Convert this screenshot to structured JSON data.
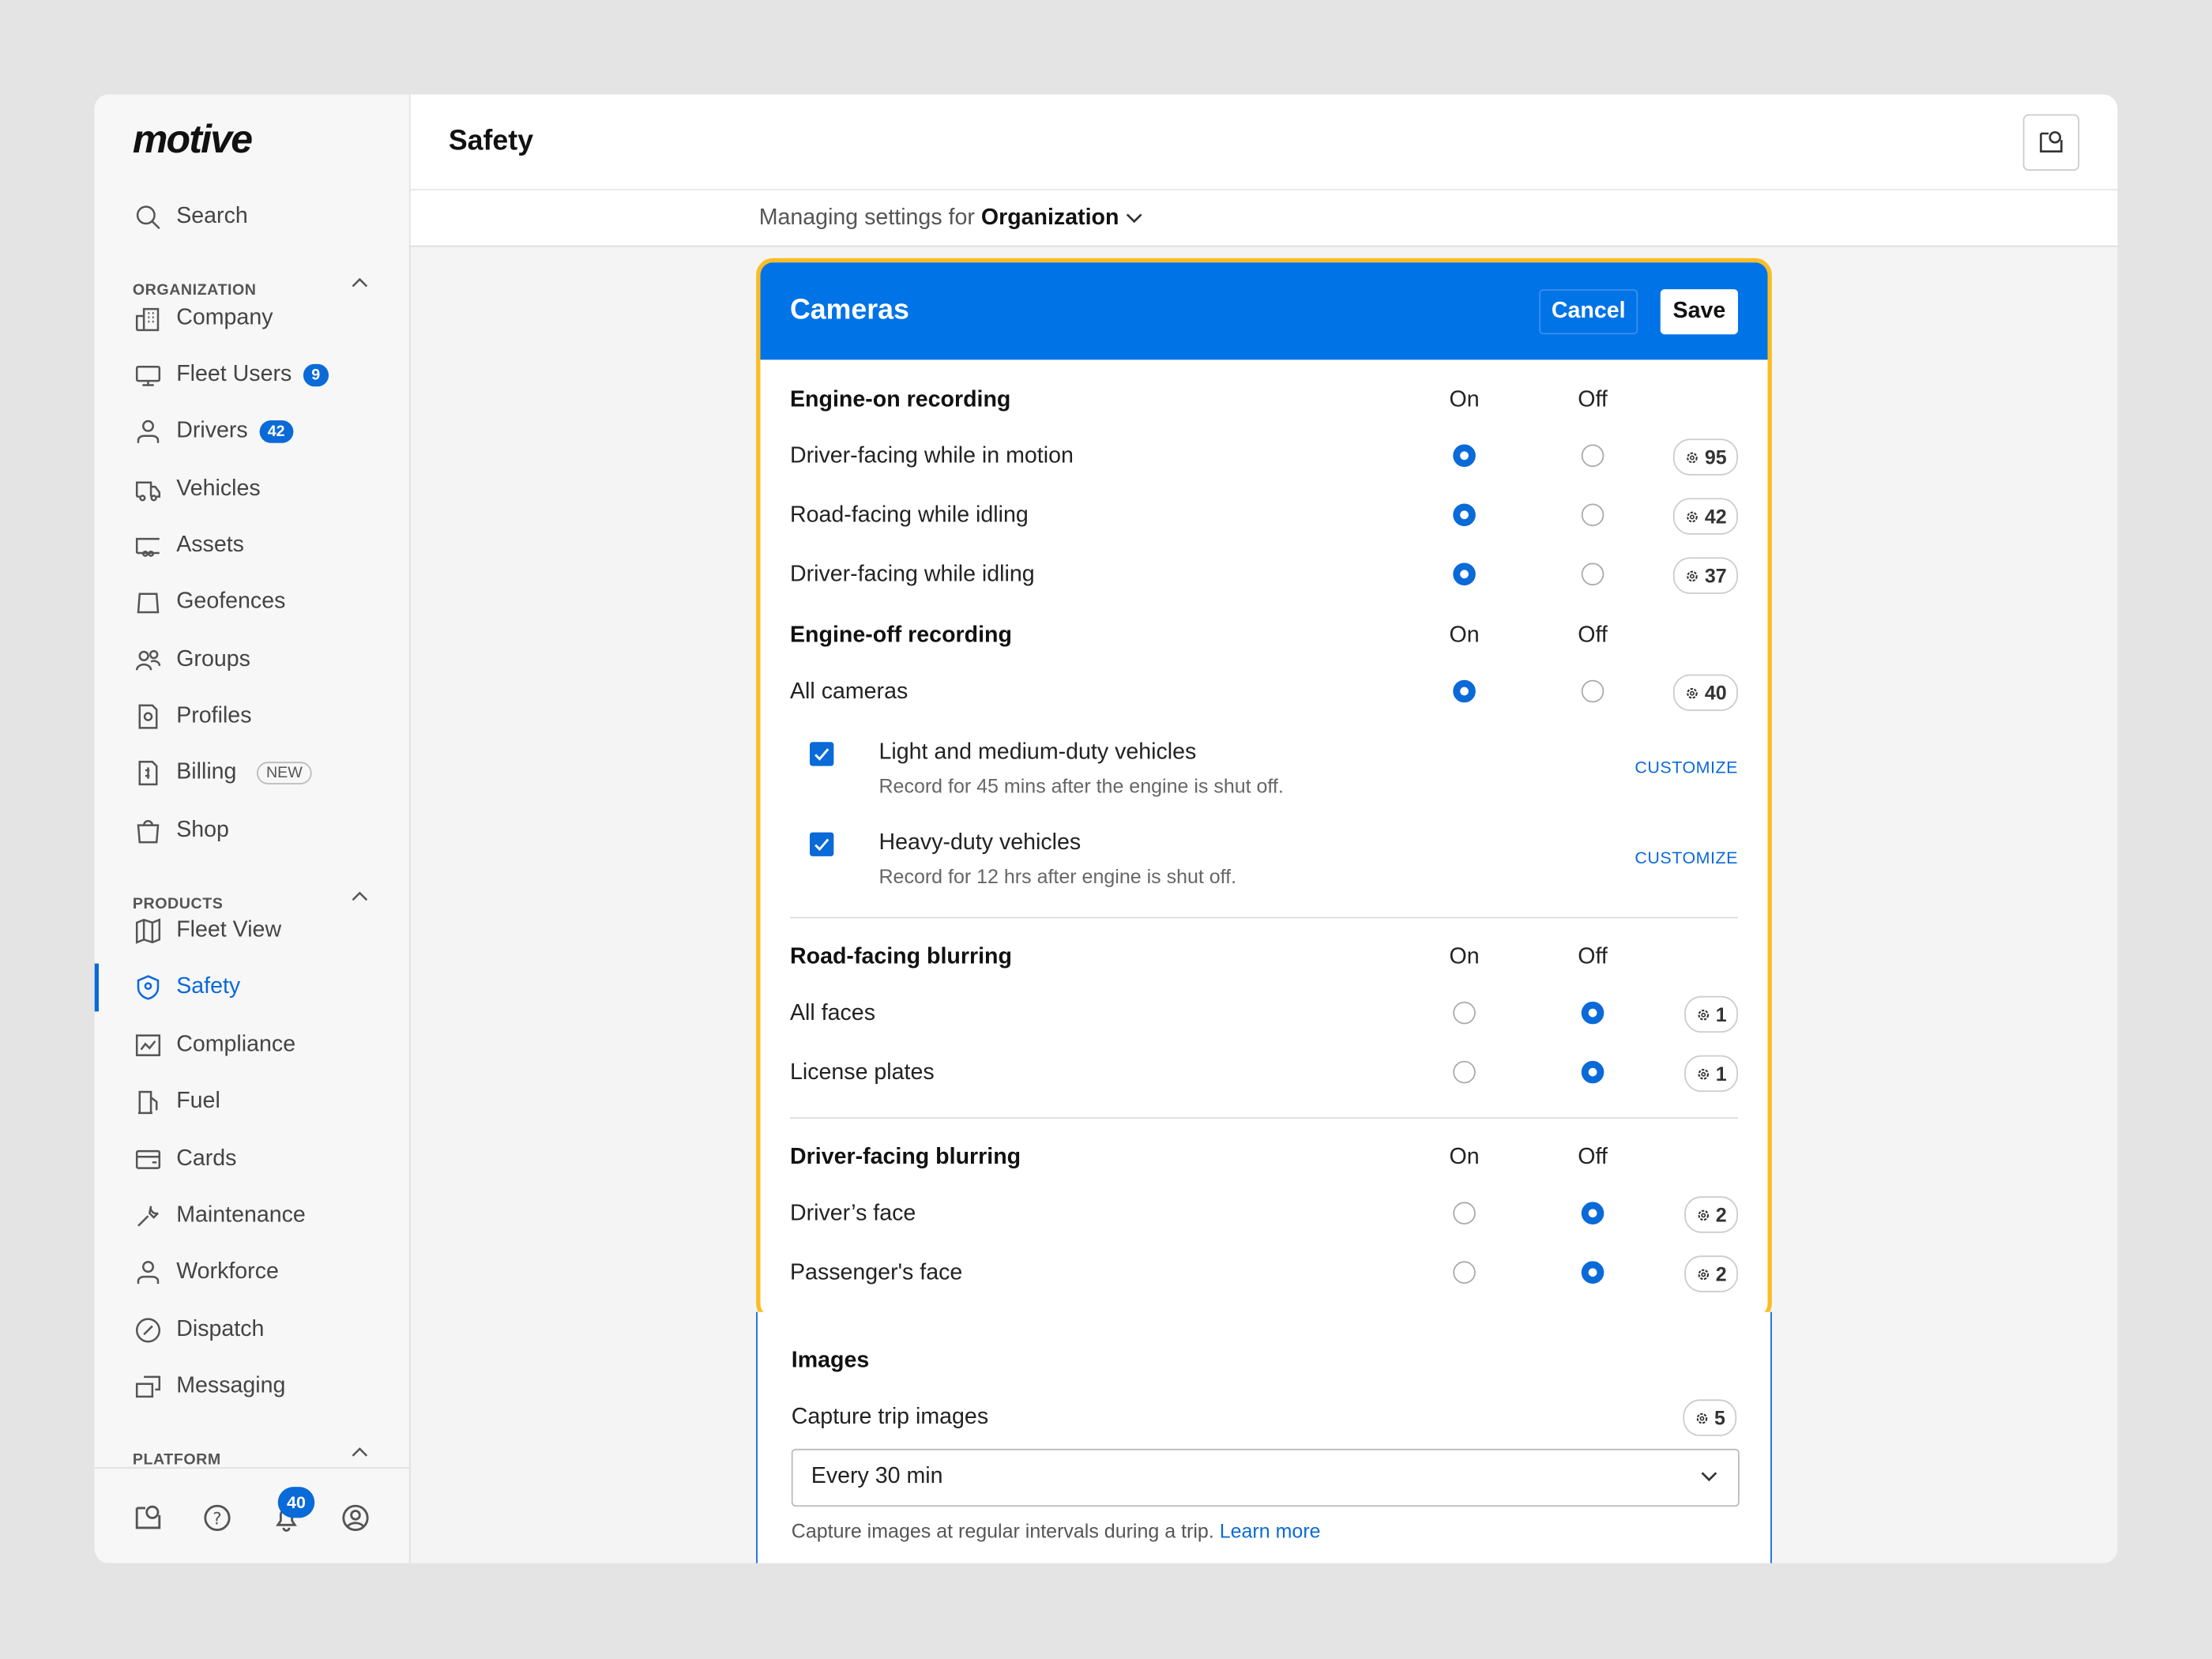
{
  "brand": "motive",
  "sidebar": {
    "search": "Search",
    "sections": [
      "ORGANIZATION",
      "PRODUCTS",
      "PLATFORM"
    ],
    "org_items": [
      {
        "label": "Company",
        "icon": "building-icon"
      },
      {
        "label": "Fleet Users",
        "icon": "monitor-icon",
        "badge": "9"
      },
      {
        "label": "Drivers",
        "icon": "person-icon",
        "badge": "42"
      },
      {
        "label": "Vehicles",
        "icon": "truck-icon"
      },
      {
        "label": "Assets",
        "icon": "trailer-icon"
      },
      {
        "label": "Geofences",
        "icon": "geofence-icon"
      },
      {
        "label": "Groups",
        "icon": "group-icon"
      },
      {
        "label": "Profiles",
        "icon": "profile-gear-icon"
      },
      {
        "label": "Billing",
        "icon": "billing-icon",
        "tag": "NEW"
      },
      {
        "label": "Shop",
        "icon": "shopping-bag-icon"
      }
    ],
    "product_items": [
      {
        "label": "Fleet View",
        "icon": "map-icon"
      },
      {
        "label": "Safety",
        "icon": "shield-icon",
        "active": true
      },
      {
        "label": "Compliance",
        "icon": "chart-icon"
      },
      {
        "label": "Fuel",
        "icon": "fuel-icon"
      },
      {
        "label": "Cards",
        "icon": "card-icon"
      },
      {
        "label": "Maintenance",
        "icon": "wrench-icon"
      },
      {
        "label": "Workforce",
        "icon": "person-icon"
      },
      {
        "label": "Dispatch",
        "icon": "dispatch-icon"
      },
      {
        "label": "Messaging",
        "icon": "messaging-icon"
      }
    ],
    "notifications_count": "40"
  },
  "header": {
    "title": "Safety",
    "managing_prefix": "Managing settings for",
    "scope": "Organization"
  },
  "card": {
    "title": "Cameras",
    "cancel": "Cancel",
    "save": "Save",
    "on": "On",
    "off": "Off",
    "engine_on": {
      "title": "Engine-on recording",
      "rows": [
        {
          "label": "Driver-facing while in motion",
          "value": "on",
          "count": "95"
        },
        {
          "label": "Road-facing while idling",
          "value": "on",
          "count": "42"
        },
        {
          "label": "Driver-facing while idling",
          "value": "on",
          "count": "37"
        }
      ]
    },
    "engine_off": {
      "title": "Engine-off recording",
      "rows": [
        {
          "label": "All cameras",
          "value": "on",
          "count": "40"
        }
      ],
      "options": [
        {
          "label": "Light and medium-duty vehicles",
          "desc": "Record for 45 mins after the engine is shut off.",
          "checked": true,
          "action": "CUSTOMIZE"
        },
        {
          "label": "Heavy-duty vehicles",
          "desc": "Record for 12 hrs after engine is shut off.",
          "checked": true,
          "action": "CUSTOMIZE"
        }
      ]
    },
    "road_blur": {
      "title": "Road-facing blurring",
      "rows": [
        {
          "label": "All faces",
          "value": "off",
          "count": "1"
        },
        {
          "label": "License plates",
          "value": "off",
          "count": "1"
        }
      ]
    },
    "driver_blur": {
      "title": "Driver-facing blurring",
      "rows": [
        {
          "label": "Driver’s face",
          "value": "off",
          "count": "2"
        },
        {
          "label": "Passenger's face",
          "value": "off",
          "count": "2"
        }
      ]
    }
  },
  "images": {
    "title": "Images",
    "label": "Capture trip images",
    "count": "5",
    "selected": "Every 30 min",
    "help": "Capture images at regular intervals during a trip.",
    "link": "Learn more"
  },
  "colors": {
    "accent": "#0a6ad8",
    "header_blue": "#0073e6",
    "highlight": "#fbbd23"
  }
}
